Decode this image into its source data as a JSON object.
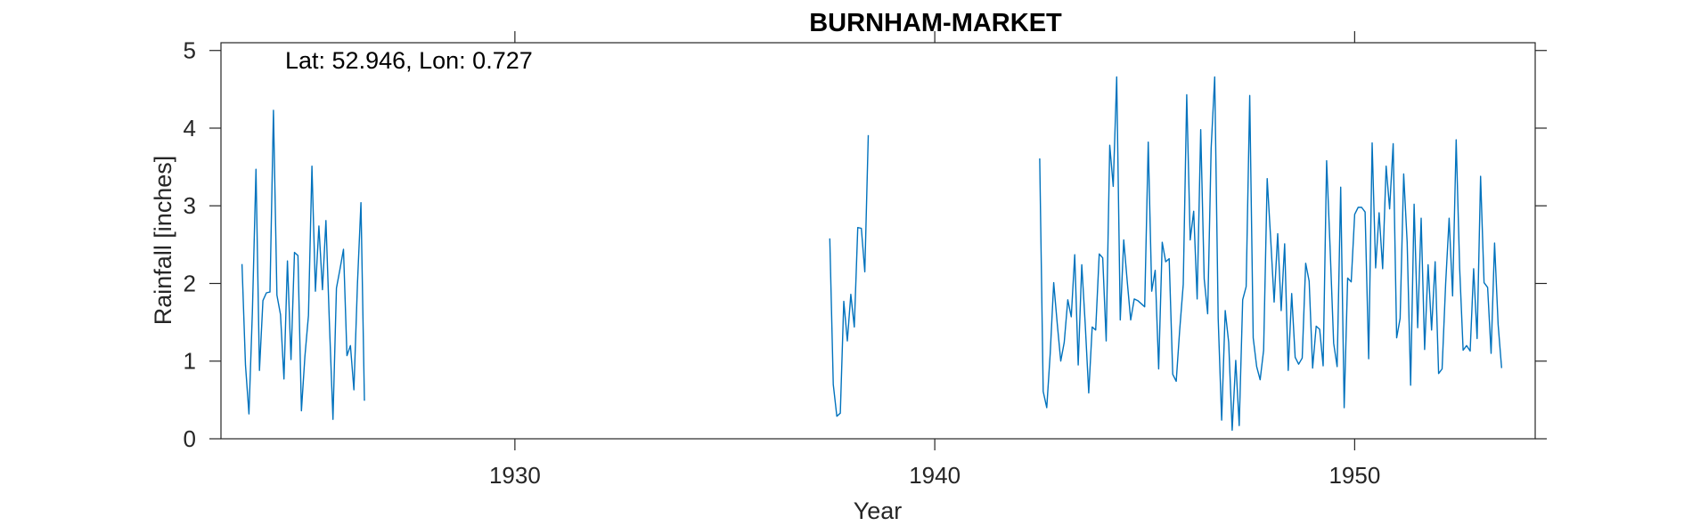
{
  "chart_data": {
    "type": "line",
    "title": "BURNHAM-MARKET",
    "xlabel": "Year",
    "ylabel": "Rainfall [inches]",
    "annotation": "Lat: 52.946, Lon: 0.727",
    "xlim": [
      1923,
      1954.3
    ],
    "ylim": [
      0,
      5.1
    ],
    "xticks": [
      1930,
      1940,
      1950
    ],
    "yticks": [
      0,
      1,
      2,
      3,
      4,
      5
    ],
    "grid": false,
    "series_color": "#0072BD",
    "series": [
      {
        "segments": [
          [
            [
              1923.5,
              2.25
            ],
            [
              1923.583,
              0.95
            ],
            [
              1923.667,
              0.32
            ],
            [
              1923.75,
              1.65
            ],
            [
              1923.833,
              3.47
            ],
            [
              1923.917,
              0.88
            ],
            [
              1924.0,
              1.78
            ],
            [
              1924.083,
              1.88
            ],
            [
              1924.167,
              1.89
            ],
            [
              1924.25,
              4.23
            ],
            [
              1924.333,
              1.85
            ],
            [
              1924.417,
              1.6
            ],
            [
              1924.5,
              0.77
            ],
            [
              1924.583,
              2.29
            ],
            [
              1924.667,
              1.02
            ],
            [
              1924.75,
              2.4
            ],
            [
              1924.833,
              2.36
            ],
            [
              1924.917,
              0.36
            ],
            [
              1925.0,
              1.06
            ],
            [
              1925.083,
              1.59
            ],
            [
              1925.167,
              3.51
            ],
            [
              1925.25,
              1.9
            ],
            [
              1925.333,
              2.74
            ],
            [
              1925.417,
              1.92
            ],
            [
              1925.5,
              2.81
            ],
            [
              1925.583,
              1.49
            ],
            [
              1925.667,
              0.25
            ],
            [
              1925.75,
              1.94
            ],
            [
              1925.833,
              2.18
            ],
            [
              1925.917,
              2.44
            ],
            [
              1926.0,
              1.07
            ],
            [
              1926.083,
              1.2
            ],
            [
              1926.167,
              0.63
            ],
            [
              1926.25,
              2.0
            ],
            [
              1926.333,
              3.04
            ],
            [
              1926.417,
              0.49
            ]
          ],
          [
            [
              1937.5,
              2.58
            ],
            [
              1937.583,
              0.7
            ],
            [
              1937.667,
              0.29
            ],
            [
              1937.75,
              0.33
            ],
            [
              1937.833,
              1.77
            ],
            [
              1937.917,
              1.26
            ],
            [
              1938.0,
              1.86
            ],
            [
              1938.083,
              1.44
            ],
            [
              1938.167,
              2.72
            ],
            [
              1938.25,
              2.71
            ],
            [
              1938.333,
              2.15
            ],
            [
              1938.417,
              3.91
            ]
          ],
          [
            [
              1942.5,
              3.61
            ],
            [
              1942.583,
              0.61
            ],
            [
              1942.667,
              0.4
            ],
            [
              1942.75,
              1.1
            ],
            [
              1942.833,
              2.01
            ],
            [
              1942.917,
              1.48
            ],
            [
              1943.0,
              1.0
            ],
            [
              1943.083,
              1.24
            ],
            [
              1943.167,
              1.79
            ],
            [
              1943.25,
              1.57
            ],
            [
              1943.333,
              2.37
            ],
            [
              1943.417,
              0.95
            ],
            [
              1943.5,
              2.24
            ],
            [
              1943.583,
              1.47
            ],
            [
              1943.667,
              0.59
            ],
            [
              1943.75,
              1.44
            ],
            [
              1943.833,
              1.4
            ],
            [
              1943.917,
              2.38
            ],
            [
              1944.0,
              2.33
            ],
            [
              1944.083,
              1.26
            ],
            [
              1944.167,
              3.78
            ],
            [
              1944.25,
              3.25
            ],
            [
              1944.333,
              4.66
            ],
            [
              1944.417,
              1.53
            ],
            [
              1944.5,
              2.56
            ],
            [
              1944.583,
              2.03
            ],
            [
              1944.667,
              1.53
            ],
            [
              1944.75,
              1.8
            ],
            [
              1944.833,
              1.78
            ],
            [
              1944.917,
              1.74
            ],
            [
              1945.0,
              1.7
            ],
            [
              1945.083,
              3.82
            ],
            [
              1945.167,
              1.9
            ],
            [
              1945.25,
              2.17
            ],
            [
              1945.333,
              0.9
            ],
            [
              1945.417,
              2.53
            ],
            [
              1945.5,
              2.28
            ],
            [
              1945.583,
              2.32
            ],
            [
              1945.667,
              0.83
            ],
            [
              1945.75,
              0.74
            ],
            [
              1945.833,
              1.4
            ],
            [
              1945.917,
              1.99
            ],
            [
              1946.0,
              4.43
            ],
            [
              1946.083,
              2.56
            ],
            [
              1946.167,
              2.93
            ],
            [
              1946.25,
              1.8
            ],
            [
              1946.333,
              3.98
            ],
            [
              1946.417,
              2.06
            ],
            [
              1946.5,
              1.61
            ],
            [
              1946.583,
              3.74
            ],
            [
              1946.667,
              4.66
            ],
            [
              1946.75,
              1.55
            ],
            [
              1946.833,
              0.24
            ],
            [
              1946.917,
              1.65
            ],
            [
              1947.0,
              1.24
            ],
            [
              1947.083,
              0.11
            ],
            [
              1947.167,
              1.01
            ],
            [
              1947.25,
              0.17
            ],
            [
              1947.333,
              1.79
            ],
            [
              1947.417,
              1.96
            ],
            [
              1947.5,
              4.42
            ],
            [
              1947.583,
              1.3
            ],
            [
              1947.667,
              0.93
            ],
            [
              1947.75,
              0.76
            ],
            [
              1947.833,
              1.14
            ],
            [
              1947.917,
              3.35
            ],
            [
              1948.0,
              2.58
            ],
            [
              1948.083,
              1.76
            ],
            [
              1948.167,
              2.64
            ],
            [
              1948.25,
              1.65
            ],
            [
              1948.333,
              2.51
            ],
            [
              1948.417,
              0.88
            ],
            [
              1948.5,
              1.87
            ],
            [
              1948.583,
              1.05
            ],
            [
              1948.667,
              0.96
            ],
            [
              1948.75,
              1.04
            ],
            [
              1948.833,
              2.26
            ],
            [
              1948.917,
              2.03
            ],
            [
              1949.0,
              0.91
            ],
            [
              1949.083,
              1.45
            ],
            [
              1949.167,
              1.41
            ],
            [
              1949.25,
              0.94
            ],
            [
              1949.333,
              3.58
            ],
            [
              1949.417,
              2.43
            ],
            [
              1949.5,
              1.23
            ],
            [
              1949.583,
              0.93
            ],
            [
              1949.667,
              3.24
            ],
            [
              1949.75,
              0.4
            ],
            [
              1949.833,
              2.07
            ],
            [
              1949.917,
              2.02
            ],
            [
              1950.0,
              2.89
            ],
            [
              1950.083,
              2.98
            ],
            [
              1950.167,
              2.98
            ],
            [
              1950.25,
              2.92
            ],
            [
              1950.333,
              1.03
            ],
            [
              1950.417,
              3.81
            ],
            [
              1950.5,
              2.2
            ],
            [
              1950.583,
              2.91
            ],
            [
              1950.667,
              2.19
            ],
            [
              1950.75,
              3.51
            ],
            [
              1950.833,
              2.96
            ],
            [
              1950.917,
              3.8
            ],
            [
              1951.0,
              1.3
            ],
            [
              1951.083,
              1.55
            ],
            [
              1951.167,
              3.41
            ],
            [
              1951.25,
              2.53
            ],
            [
              1951.333,
              0.69
            ],
            [
              1951.417,
              3.02
            ],
            [
              1951.5,
              1.43
            ],
            [
              1951.583,
              2.84
            ],
            [
              1951.667,
              1.15
            ],
            [
              1951.75,
              2.24
            ],
            [
              1951.833,
              1.4
            ],
            [
              1951.917,
              2.28
            ],
            [
              1952.0,
              0.84
            ],
            [
              1952.083,
              0.9
            ],
            [
              1952.167,
              2.0
            ],
            [
              1952.25,
              2.84
            ],
            [
              1952.333,
              1.84
            ],
            [
              1952.417,
              3.85
            ],
            [
              1952.5,
              2.2
            ],
            [
              1952.583,
              1.14
            ],
            [
              1952.667,
              1.2
            ],
            [
              1952.75,
              1.13
            ],
            [
              1952.833,
              2.19
            ],
            [
              1952.917,
              1.29
            ],
            [
              1953.0,
              3.38
            ],
            [
              1953.083,
              2.01
            ],
            [
              1953.167,
              1.95
            ],
            [
              1953.25,
              1.1
            ],
            [
              1953.333,
              2.52
            ],
            [
              1953.417,
              1.47
            ],
            [
              1953.5,
              0.91
            ]
          ]
        ]
      }
    ]
  }
}
